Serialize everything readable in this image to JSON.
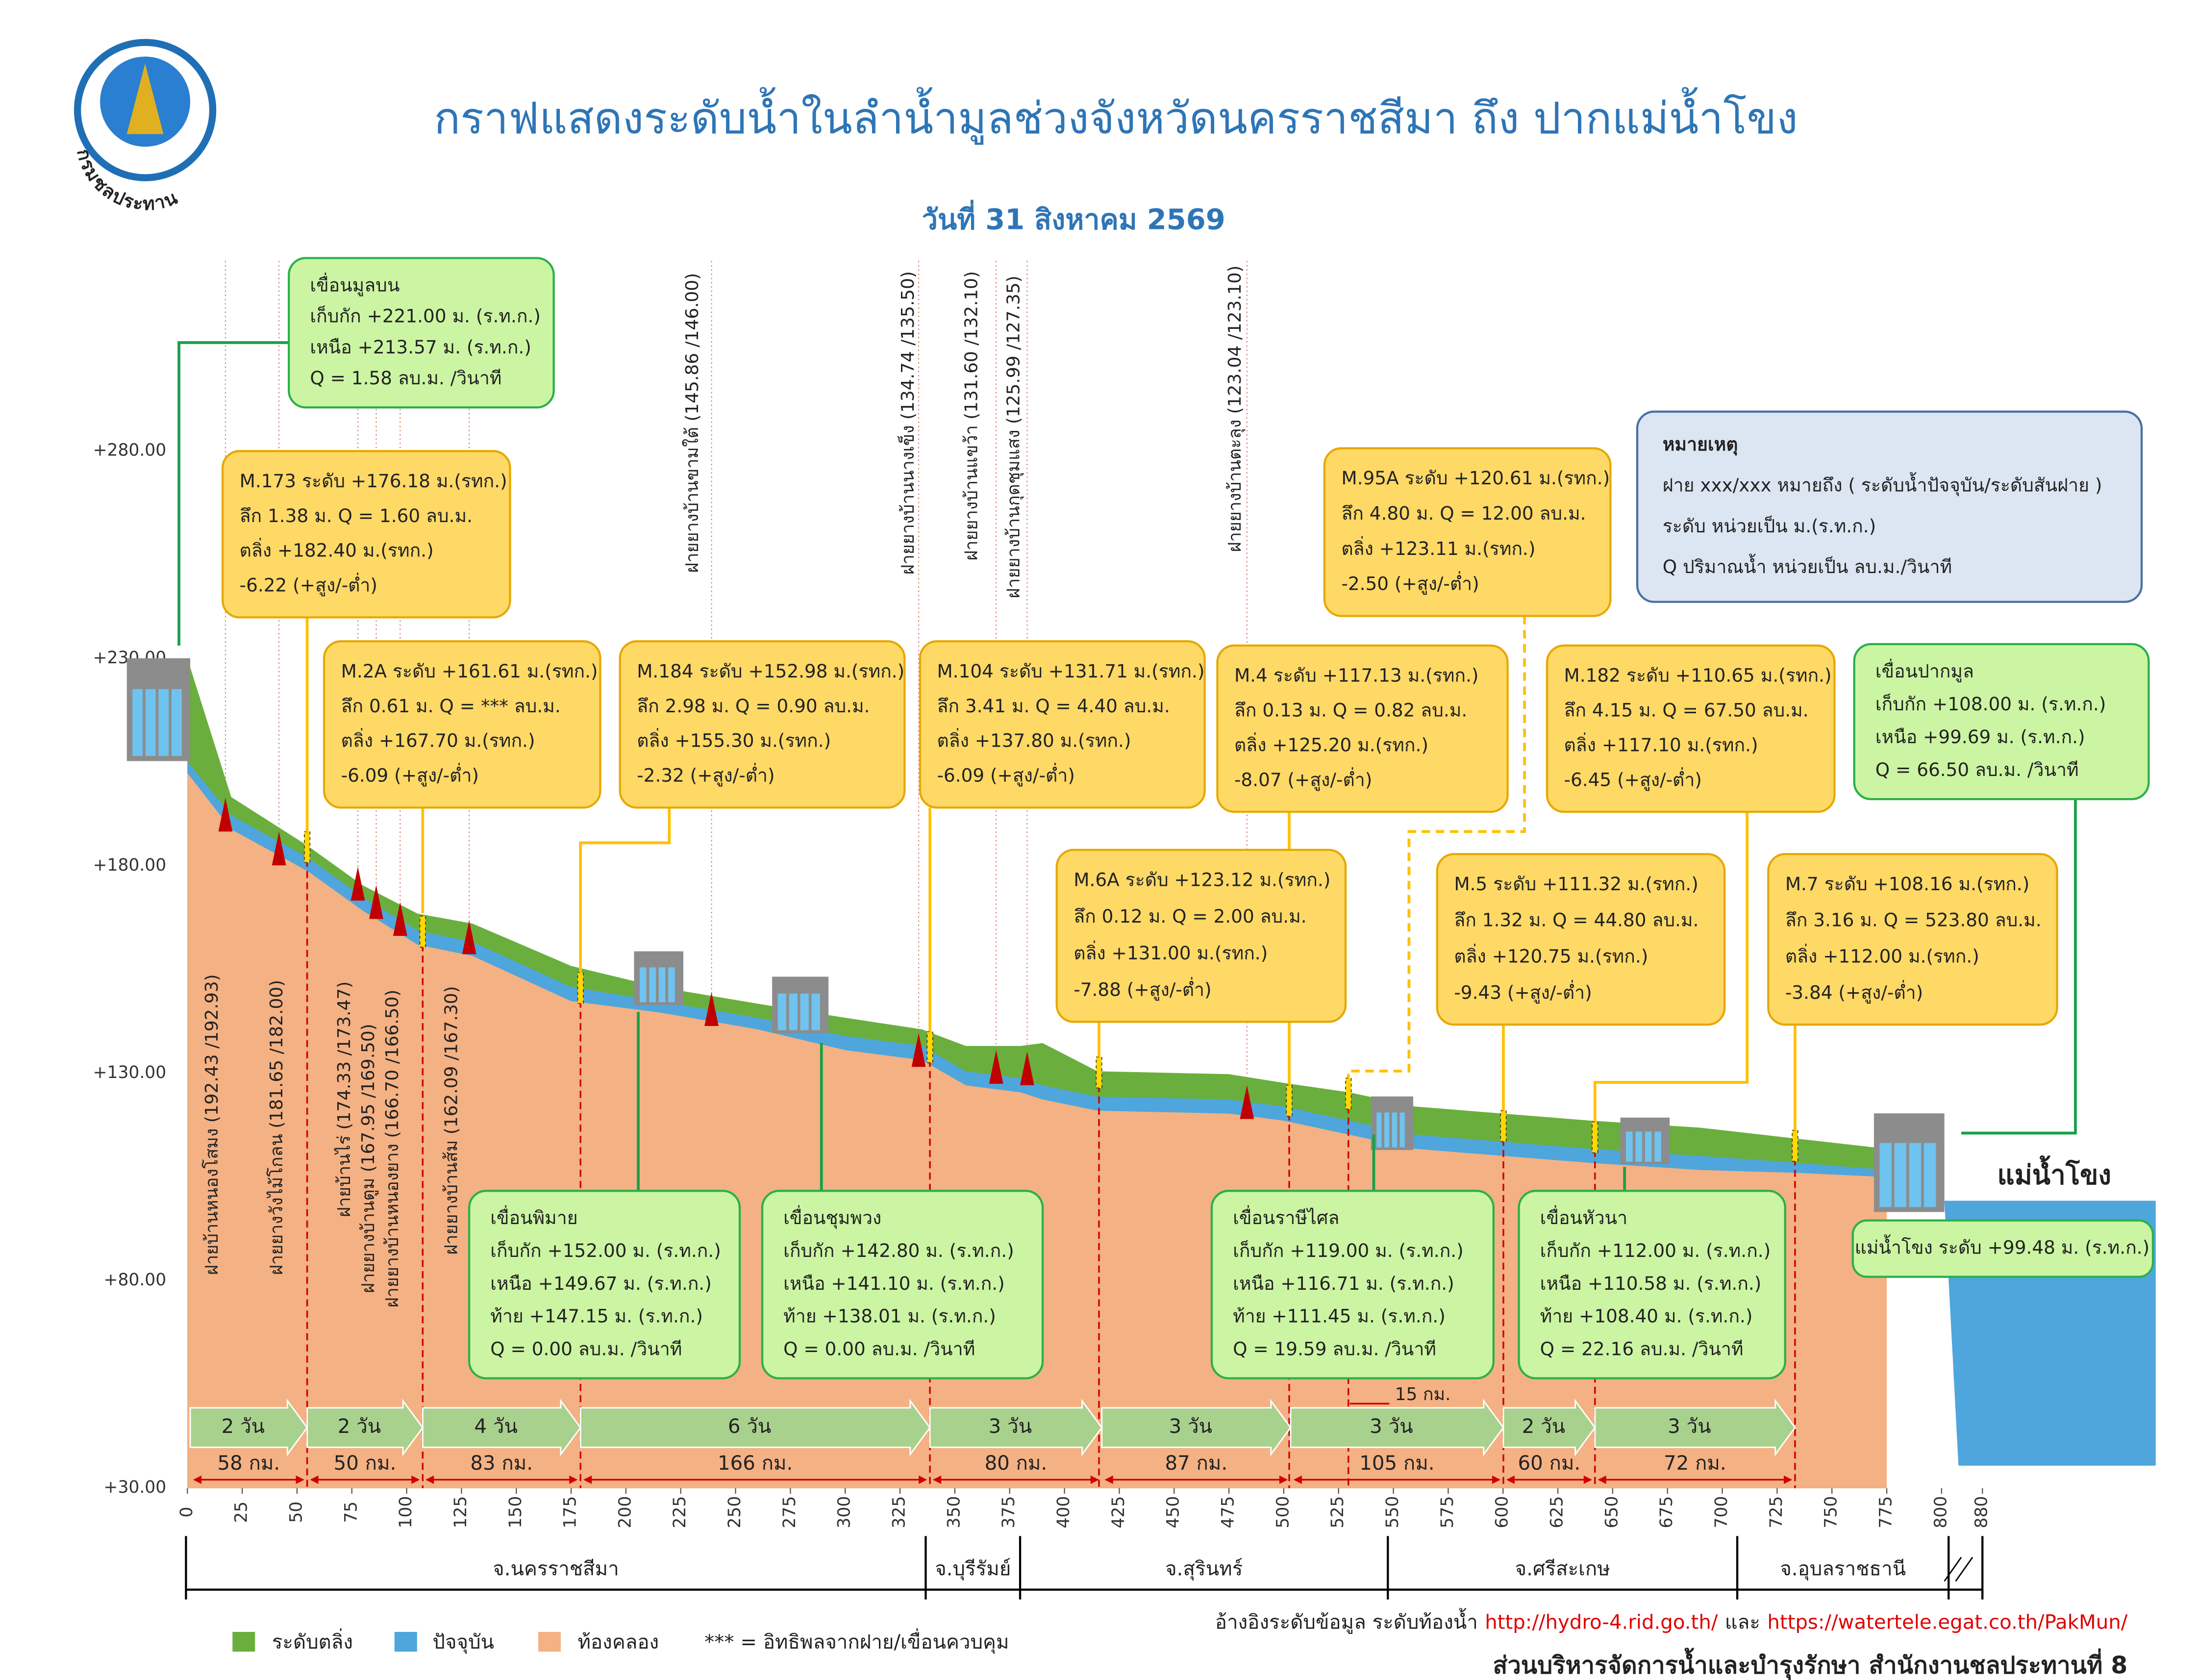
{
  "chart_data": {
    "type": "profile",
    "title": "กราฟแสดงระดับน้ำในลำน้ำมูลช่วงจังหวัดนครราชสีมา ถึง ปากแม่น้ำโขง",
    "subtitle": "วันที่ 31 สิงหาคม 2569",
    "agency": "กรมชลประทาน",
    "x": [
      0,
      20,
      55,
      80,
      105,
      130,
      175,
      215,
      260,
      300,
      335,
      355,
      380,
      390,
      415,
      475,
      500,
      530,
      560,
      600,
      640,
      690,
      735,
      775
    ],
    "series": [
      {
        "name": "ระดับตลิ่ง",
        "color": "#6aaf3d",
        "values": [
          230,
          196.6,
          184.8,
          175.3,
          168.5,
          166.1,
          155.9,
          150.8,
          146.8,
          143.4,
          140.6,
          136.6,
          136.6,
          137.3,
          130.5,
          129.8,
          127.7,
          125.4,
          122,
          120.3,
          118.6,
          116.9,
          114.2,
          111.8
        ]
      },
      {
        "name": "ปัจจุบัน",
        "color": "#4ea6dc",
        "values": [
          205.1,
          192.2,
          182,
          172.5,
          164.4,
          161.7,
          150.8,
          147.4,
          143.4,
          139,
          136.6,
          130.5,
          128.8,
          127.1,
          124.4,
          123.7,
          122,
          118.6,
          115.2,
          113.5,
          111.8,
          110.1,
          108.4,
          106.7
        ]
      },
      {
        "name": "ท้องคลอง",
        "color": "#f4b183",
        "values": [
          202.4,
          188.8,
          178.7,
          169.2,
          161,
          158.3,
          147.4,
          144.7,
          140.6,
          135.6,
          133.2,
          127.1,
          125.4,
          123.7,
          121,
          120.3,
          118.6,
          115.2,
          111.8,
          110.1,
          108.4,
          106.7,
          106,
          105
        ]
      }
    ],
    "ylim": [
      30,
      280
    ],
    "yticks": [
      {
        "value": 280,
        "label": "+280.00"
      },
      {
        "value": 230,
        "label": "+230.00"
      },
      {
        "value": 180,
        "label": "+180.00"
      },
      {
        "value": 130,
        "label": "+130.00"
      },
      {
        "value": 80,
        "label": "+80.00"
      },
      {
        "value": 30,
        "label": "+30.00"
      }
    ],
    "xlim": [
      0,
      880
    ],
    "xbreak": [
      800,
      880
    ],
    "xticks": [
      0,
      25,
      50,
      75,
      100,
      125,
      150,
      175,
      200,
      225,
      250,
      275,
      300,
      325,
      350,
      375,
      400,
      425,
      450,
      475,
      500,
      525,
      550,
      575,
      600,
      625,
      650,
      675,
      700,
      725,
      750,
      775,
      800,
      880
    ],
    "legend_note": "*** = อิทธิพลจากฝาย/เขื่อนควบคุม",
    "stations": [
      [
        "M.173  ระดับ +176.18 ม.(รทก.)",
        "ลึก 1.38 ม. Q = 1.60 ลบ.ม.",
        "ตลิ่ง +182.40 ม.(รทก.)",
        "-6.22 (+สูง/-ต่ำ)"
      ],
      [
        "M.2A  ระดับ +161.61 ม.(รทก.)",
        "ลึก 0.61 ม. Q = *** ลบ.ม.",
        "ตลิ่ง +167.70 ม.(รทก.)",
        "-6.09 (+สูง/-ต่ำ)"
      ],
      [
        "M.184  ระดับ +152.98 ม.(รทก.)",
        "ลึก 2.98 ม. Q = 0.90 ลบ.ม.",
        "ตลิ่ง +155.30 ม.(รทก.)",
        "-2.32 (+สูง/-ต่ำ)"
      ],
      [
        "M.104  ระดับ +131.71 ม.(รทก.)",
        "ลึก 3.41 ม. Q = 4.40 ลบ.ม.",
        "ตลิ่ง +137.80 ม.(รทก.)",
        "-6.09 (+สูง/-ต่ำ)"
      ],
      [
        "M.4  ระดับ +117.13 ม.(รทก.)",
        "ลึก 0.13 ม. Q = 0.82 ลบ.ม.",
        "ตลิ่ง +125.20 ม.(รทก.)",
        "-8.07 (+สูง/-ต่ำ)"
      ],
      [
        "M.182  ระดับ +110.65 ม.(รทก.)",
        "ลึก 4.15 ม. Q = 67.50 ลบ.ม.",
        "ตลิ่ง +117.10 ม.(รทก.)",
        "-6.45 (+สูง/-ต่ำ)"
      ],
      [
        "M.95A ระดับ +120.61 ม.(รทก.)",
        "ลึก 4.80 ม. Q = 12.00 ลบ.ม.",
        "ตลิ่ง +123.11 ม.(รทก.)",
        "-2.50 (+สูง/-ต่ำ)"
      ],
      [
        "M.6A  ระดับ +123.12 ม.(รทก.)",
        "ลึก 0.12 ม. Q = 2.00 ลบ.ม.",
        "ตลิ่ง +131.00 ม.(รทก.)",
        "-7.88 (+สูง/-ต่ำ)"
      ],
      [
        "M.5  ระดับ +111.32 ม.(รทก.)",
        "ลึก 1.32 ม. Q = 44.80 ลบ.ม.",
        "ตลิ่ง +120.75 ม.(รทก.)",
        "-9.43 (+สูง/-ต่ำ)"
      ],
      [
        "M.7  ระดับ +108.16 ม.(รทก.)",
        "ลึก 3.16 ม. Q = 523.80 ลบ.ม.",
        "ตลิ่ง +112.00 ม.(รทก.)",
        "-3.84 (+สูง/-ต่ำ)"
      ]
    ],
    "dams": [
      [
        "เขื่อนมูลบน",
        "เก็บกัก +221.00 ม. (ร.ท.ก.)",
        "เหนือ +213.57 ม. (ร.ท.ก.)",
        "Q = 1.58 ลบ.ม. /วินาที"
      ],
      [
        "เขื่อนปากมูล",
        "เก็บกัก +108.00 ม. (ร.ท.ก.)",
        "เหนือ +99.69 ม. (ร.ท.ก.)",
        "Q = 66.50 ลบ.ม. /วินาที"
      ],
      [
        "เขื่อนพิมาย",
        "เก็บกัก +152.00 ม. (ร.ท.ก.)",
        "เหนือ +149.67 ม. (ร.ท.ก.)",
        "ท้าย +147.15 ม. (ร.ท.ก.)",
        "Q = 0.00 ลบ.ม. /วินาที"
      ],
      [
        "เขื่อนชุมพวง",
        "เก็บกัก +142.80 ม. (ร.ท.ก.)",
        "เหนือ +141.10 ม. (ร.ท.ก.)",
        "ท้าย +138.01 ม. (ร.ท.ก.)",
        "Q = 0.00 ลบ.ม. /วินาที"
      ],
      [
        "เขื่อนราษีไศล",
        "เก็บกัก +119.00 ม. (ร.ท.ก.)",
        "เหนือ +116.71 ม. (ร.ท.ก.)",
        "ท้าย +111.45 ม. (ร.ท.ก.)",
        "Q = 19.59 ลบ.ม. /วินาที"
      ],
      [
        "เขื่อนหัวนา",
        "เก็บกัก +112.00 ม. (ร.ท.ก.)",
        "เหนือ +110.58 ม. (ร.ท.ก.)",
        "ท้าย +108.40 ม. (ร.ท.ก.)",
        "Q = 22.16 ลบ.ม. /วินาที"
      ]
    ],
    "mekong_label": "แม่น้ำโขง",
    "mekong_level": "แม่น้ำโขง ระดับ +99.48 ม. (ร.ท.ก.)",
    "note": [
      "หมายเหตุ",
      "ฝาย xxx/xxx หมายถึง ( ระดับน้ำปัจจุบัน/ระดับสันฝาย )",
      "ระดับ หน่วยเป็น ม.(ร.ท.ก.)",
      "Q ปริมาณน้ำ หน่วยเป็น ลบ.ม./วินาที"
    ],
    "weirs": [
      "ฝายบ้านหนองโสมง (192.43 /192.93)",
      "ฝายยางวังไม้โกลน (181.65 /182.00)",
      "ฝายบ้านไร่ (174.33 /173.47)",
      "ฝายยางบ้านตูม (167.95 /169.50)",
      "ฝายยางบ้านหนองยาง (166.70 /166.50)",
      "ฝายยางบ้านส้ม (162.09 /167.30)",
      "ฝายยางบ้านขามใต้ (145.86 /146.00)",
      "ฝายยางบ้านนางเข็ง (134.74 /135.50)",
      "ฝายยางบ้านแขว้า (131.60 /132.10)",
      "ฝายยางบ้านกุดชุมแสง (125.99 /127.35)",
      "ฝายยางบ้านตะลุง (123.04 /123.10)"
    ],
    "travel": [
      {
        "time": "2 วัน",
        "distance": "58 กม."
      },
      {
        "time": "2 วัน",
        "distance": "50 กม."
      },
      {
        "time": "4 วัน",
        "distance": "83 กม."
      },
      {
        "time": "6 วัน",
        "distance": "166 กม."
      },
      {
        "time": "3 วัน",
        "distance": "80 กม."
      },
      {
        "time": "3 วัน",
        "distance": "87 กม."
      },
      {
        "time": "3 วัน",
        "distance": "105 กม."
      },
      {
        "time": "2 วัน",
        "distance": "60 กม."
      },
      {
        "time": "3 วัน",
        "distance": "72 กม."
      }
    ],
    "extra_distance": "15 กม.",
    "provinces": [
      "จ.นครราชสีมา",
      "จ.บุรีรัมย์",
      "จ.สุรินทร์",
      "จ.ศรีสะเกษ",
      "จ.อุบลราชธานี"
    ],
    "sources": {
      "label": "อ้างอิงระดับข้อมูล ระดับท้องน้ำ",
      "url1": "http://hydro-4.rid.go.th/",
      "and": "และ",
      "url2": "https://watertele.egat.co.th/PakMun/"
    },
    "footer": "ส่วนบริหารจัดการน้ำและบำรุงรักษา สำนักงานชลประทานที่ 8"
  }
}
